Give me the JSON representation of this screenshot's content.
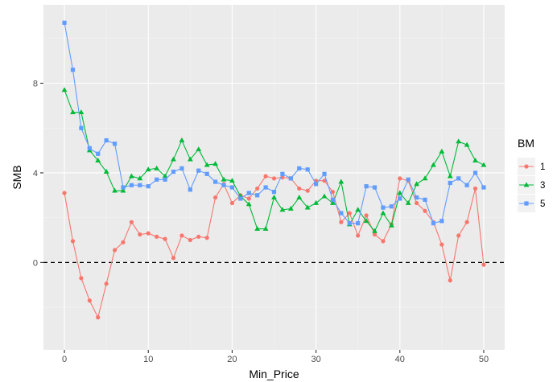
{
  "chart_data": {
    "type": "line",
    "xlabel": "Min_Price",
    "ylabel": "SMB",
    "xlim": [
      -2.5,
      52.5
    ],
    "ylim": [
      -3.9,
      11.5
    ],
    "x_ticks": [
      0,
      10,
      20,
      30,
      40,
      50
    ],
    "y_ticks": [
      0,
      4,
      8
    ],
    "reference_line": {
      "y": 0,
      "style": "dashed",
      "color": "#000000"
    },
    "grid": true,
    "legend": {
      "title": "BM",
      "position": "right"
    },
    "x": [
      0,
      1,
      2,
      3,
      4,
      5,
      6,
      7,
      8,
      9,
      10,
      11,
      12,
      13,
      14,
      15,
      16,
      17,
      18,
      19,
      20,
      21,
      22,
      23,
      24,
      25,
      26,
      27,
      28,
      29,
      30,
      31,
      32,
      33,
      34,
      35,
      36,
      37,
      38,
      39,
      40,
      41,
      42,
      43,
      44,
      45,
      46,
      47,
      48,
      49,
      50
    ],
    "series": [
      {
        "name": "1",
        "color": "#F8766D",
        "marker": "circle",
        "values": [
          3.1,
          0.95,
          -0.7,
          -1.7,
          -2.45,
          -0.95,
          0.55,
          0.9,
          1.8,
          1.25,
          1.3,
          1.15,
          1.05,
          0.2,
          1.2,
          1.0,
          1.15,
          1.1,
          2.9,
          3.5,
          2.65,
          3.0,
          2.85,
          3.3,
          3.85,
          3.75,
          3.8,
          3.75,
          3.3,
          3.2,
          3.65,
          3.65,
          3.15,
          1.8,
          2.2,
          1.2,
          2.1,
          1.25,
          0.95,
          1.7,
          3.75,
          3.65,
          2.65,
          2.3,
          1.8,
          0.8,
          -0.8,
          1.2,
          1.8,
          3.3,
          -0.1
        ]
      },
      {
        "name": "3",
        "color": "#00BA38",
        "marker": "triangle",
        "values": [
          7.7,
          6.7,
          6.7,
          5.0,
          4.55,
          4.05,
          3.2,
          3.2,
          3.85,
          3.75,
          4.15,
          4.2,
          3.85,
          4.6,
          5.45,
          4.6,
          5.05,
          4.35,
          4.4,
          3.7,
          3.65,
          2.95,
          2.6,
          1.5,
          1.5,
          2.9,
          2.35,
          2.4,
          2.9,
          2.45,
          2.65,
          2.95,
          2.65,
          3.6,
          1.7,
          2.35,
          1.85,
          1.4,
          2.2,
          1.65,
          3.1,
          2.65,
          3.5,
          3.75,
          4.35,
          4.95,
          3.85,
          5.4,
          5.25,
          4.55,
          4.35
        ]
      },
      {
        "name": "5",
        "color": "#619CFF",
        "marker": "square",
        "values": [
          10.7,
          8.6,
          6.0,
          5.1,
          4.85,
          5.45,
          5.3,
          3.35,
          3.45,
          3.45,
          3.4,
          3.7,
          3.7,
          4.05,
          4.2,
          3.25,
          4.1,
          3.95,
          3.6,
          3.45,
          3.35,
          2.85,
          3.1,
          3.0,
          3.35,
          3.15,
          3.95,
          3.75,
          4.2,
          4.15,
          3.5,
          3.95,
          2.8,
          2.2,
          1.75,
          1.75,
          3.4,
          3.35,
          2.45,
          2.5,
          2.85,
          3.7,
          2.9,
          2.8,
          1.75,
          1.85,
          3.55,
          3.75,
          3.45,
          4.0,
          3.35
        ]
      }
    ]
  }
}
